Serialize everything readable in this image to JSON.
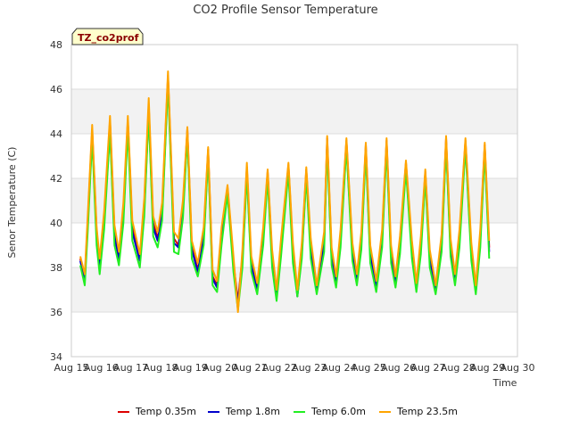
{
  "chart_data": {
    "type": "line",
    "title": "CO2 Profile Sensor Temperature",
    "xlabel": "Time",
    "ylabel": "Senor Temperature (C)",
    "badge": "TZ_co2prof",
    "ylim": [
      34,
      48
    ],
    "yticks": [
      34,
      36,
      38,
      40,
      42,
      44,
      46,
      48
    ],
    "xlim": [
      15,
      30
    ],
    "xtick_labels": [
      "Aug 15",
      "Aug 16",
      "Aug 17",
      "Aug 18",
      "Aug 19",
      "Aug 20",
      "Aug 21",
      "Aug 22",
      "Aug 23",
      "Aug 24",
      "Aug 25",
      "Aug 26",
      "Aug 27",
      "Aug 28",
      "Aug 29",
      "Aug 30"
    ],
    "x": [
      15.3,
      15.45,
      15.55,
      15.7,
      15.85,
      15.95,
      16.1,
      16.3,
      16.45,
      16.6,
      16.75,
      16.9,
      17.05,
      17.3,
      17.45,
      17.6,
      17.75,
      17.9,
      18.05,
      18.25,
      18.45,
      18.6,
      18.75,
      18.9,
      19.05,
      19.25,
      19.45,
      19.6,
      19.75,
      19.9,
      20.05,
      20.25,
      20.45,
      20.6,
      20.75,
      20.9,
      21.05,
      21.25,
      21.45,
      21.6,
      21.75,
      21.9,
      22.05,
      22.3,
      22.45,
      22.6,
      22.75,
      22.9,
      23.05,
      23.25,
      23.5,
      23.6,
      23.75,
      23.9,
      24.05,
      24.25,
      24.45,
      24.6,
      24.75,
      24.9,
      25.05,
      25.25,
      25.45,
      25.6,
      25.75,
      25.9,
      26.05,
      26.25,
      26.45,
      26.6,
      26.75,
      26.9,
      27.05,
      27.25,
      27.45,
      27.6,
      27.75,
      27.9,
      28.05,
      28.25,
      28.45,
      28.6,
      28.75,
      28.9,
      29.05
    ],
    "series": [
      {
        "name": "Temp 0.35m",
        "color": "#dd0000",
        "values": [
          38.4,
          37.5,
          40.0,
          44.2,
          39.6,
          38.2,
          40.2,
          44.6,
          39.6,
          38.5,
          40.5,
          44.6,
          39.8,
          38.4,
          40.8,
          45.3,
          40.0,
          39.3,
          40.6,
          46.6,
          39.3,
          39.0,
          40.7,
          44.2,
          38.9,
          37.9,
          39.5,
          43.3,
          37.6,
          37.2,
          39.5,
          41.6,
          38.2,
          36.5,
          38.5,
          42.5,
          38.2,
          37.1,
          39.5,
          42.3,
          38.5,
          36.8,
          39.0,
          42.6,
          38.8,
          36.8,
          38.8,
          42.4,
          39.0,
          37.0,
          39.3,
          43.8,
          38.6,
          37.4,
          39.4,
          43.7,
          38.8,
          37.5,
          39.3,
          43.5,
          38.7,
          37.2,
          39.4,
          43.7,
          38.7,
          37.4,
          39.1,
          42.7,
          38.9,
          37.1,
          39.1,
          42.3,
          38.5,
          37.0,
          39.2,
          43.8,
          39.0,
          37.5,
          39.4,
          43.7,
          38.8,
          37.0,
          39.4,
          43.5,
          38.9
        ]
      },
      {
        "name": "Temp 1.8m",
        "color": "#0000cc",
        "values": [
          38.3,
          37.4,
          39.9,
          44.0,
          39.4,
          38.1,
          40.0,
          44.2,
          39.4,
          38.4,
          40.3,
          44.4,
          39.6,
          38.3,
          40.6,
          45.0,
          39.8,
          39.2,
          40.4,
          46.4,
          39.1,
          38.9,
          40.5,
          44.0,
          38.8,
          37.8,
          39.3,
          43.1,
          37.5,
          37.1,
          39.3,
          41.4,
          38.1,
          36.4,
          38.3,
          42.3,
          38.1,
          37.0,
          39.3,
          42.1,
          38.4,
          36.7,
          38.8,
          42.4,
          38.6,
          36.7,
          38.6,
          42.2,
          38.8,
          36.9,
          39.1,
          43.6,
          38.4,
          37.3,
          39.2,
          43.5,
          38.6,
          37.4,
          39.1,
          43.3,
          38.5,
          37.1,
          39.2,
          43.5,
          38.5,
          37.3,
          38.9,
          42.5,
          38.7,
          37.0,
          38.9,
          42.1,
          38.3,
          36.9,
          39.0,
          43.6,
          38.8,
          37.4,
          39.2,
          43.5,
          38.6,
          36.9,
          39.2,
          43.3,
          38.7
        ]
      },
      {
        "name": "Temp 6.0m",
        "color": "#22ee22",
        "values": [
          38.1,
          37.2,
          39.6,
          43.8,
          39.0,
          37.7,
          39.7,
          44.1,
          39.0,
          38.1,
          40.0,
          44.2,
          39.2,
          38.0,
          40.3,
          44.9,
          39.4,
          38.9,
          40.1,
          46.3,
          38.7,
          38.6,
          40.2,
          43.9,
          38.4,
          37.6,
          39.0,
          43.0,
          37.2,
          36.9,
          39.0,
          41.3,
          37.8,
          36.1,
          38.0,
          42.2,
          37.8,
          36.8,
          39.0,
          42.0,
          38.0,
          36.5,
          38.5,
          42.3,
          38.2,
          36.7,
          38.4,
          42.1,
          38.4,
          36.8,
          38.7,
          43.5,
          38.1,
          37.1,
          38.9,
          43.4,
          38.3,
          37.2,
          38.8,
          43.2,
          38.2,
          36.9,
          38.9,
          43.4,
          38.2,
          37.1,
          38.6,
          42.4,
          38.4,
          36.9,
          38.6,
          42.0,
          38.0,
          36.8,
          38.7,
          43.5,
          38.5,
          37.2,
          38.9,
          43.4,
          38.3,
          36.8,
          38.9,
          43.2,
          38.4
        ]
      },
      {
        "name": "Temp 23.5m",
        "color": "#ffa500",
        "values": [
          38.5,
          37.7,
          40.3,
          44.4,
          39.8,
          38.4,
          40.5,
          44.8,
          39.9,
          38.7,
          40.9,
          44.8,
          40.1,
          38.6,
          41.1,
          45.6,
          40.3,
          39.6,
          40.9,
          46.8,
          39.6,
          39.3,
          41.0,
          44.3,
          39.2,
          38.2,
          39.8,
          43.4,
          37.9,
          37.4,
          39.8,
          41.7,
          38.5,
          36.0,
          38.8,
          42.7,
          38.5,
          37.3,
          39.8,
          42.4,
          38.8,
          37.0,
          39.3,
          42.7,
          39.1,
          37.0,
          39.1,
          42.5,
          39.3,
          37.2,
          39.6,
          43.9,
          38.9,
          37.6,
          39.7,
          43.8,
          39.1,
          37.7,
          39.6,
          43.6,
          39.0,
          37.4,
          39.7,
          43.8,
          39.0,
          37.6,
          39.4,
          42.8,
          39.2,
          37.3,
          39.4,
          42.4,
          38.8,
          37.2,
          39.5,
          43.9,
          39.3,
          37.7,
          39.7,
          43.8,
          39.1,
          37.2,
          39.7,
          43.6,
          39.2
        ]
      }
    ]
  }
}
